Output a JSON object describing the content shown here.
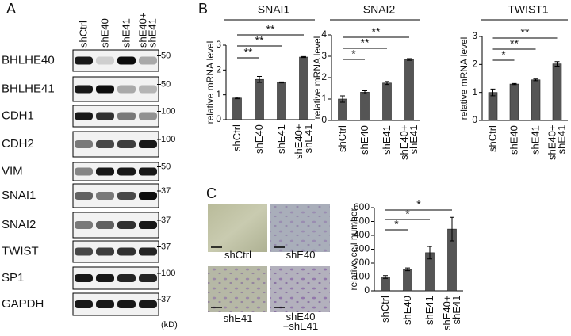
{
  "panel_labels": [
    "A",
    "B",
    "C"
  ],
  "blot": {
    "lanes": [
      "shCtrl",
      "shE40",
      "shE41",
      "shE40+\nshE41"
    ],
    "rows": [
      {
        "label": "BHLHE40",
        "marker": "50"
      },
      {
        "label": "BHLHE41",
        "marker": "50"
      },
      {
        "label": "CDH1",
        "marker": "100"
      },
      {
        "label": "CDH2",
        "marker": "100"
      },
      {
        "label": "VIM",
        "marker": "50"
      },
      {
        "label": "SNAI1",
        "marker": "37"
      },
      {
        "label": "SNAI2",
        "marker": "37"
      },
      {
        "label": "TWIST",
        "marker": "37"
      },
      {
        "label": "SP1",
        "marker": "100"
      },
      {
        "label": "GAPDH",
        "marker": "37"
      }
    ],
    "unit": "(kD)"
  },
  "images": {
    "labels": [
      "shCtrl",
      "shE40",
      "shE41",
      "shE40\n+shE41"
    ]
  },
  "chart_data": [
    {
      "type": "bar",
      "title": "SNAI1",
      "ylabel": "relative mRNA level",
      "categories": [
        "shCtrl",
        "shE40",
        "shE41",
        "shE40+\nshE41"
      ],
      "values": [
        0.87,
        1.62,
        1.5,
        2.52
      ],
      "errors": [
        0.03,
        0.12,
        0.02,
        0.02
      ],
      "significance": [
        null,
        "**",
        "**",
        "**"
      ],
      "ylim": [
        0,
        3
      ],
      "yticks": [
        0,
        1,
        2,
        3
      ],
      "color": "#555555"
    },
    {
      "type": "bar",
      "title": "SNAI2",
      "ylabel": "relative mRNA level",
      "categories": [
        "shCtrl",
        "shE40",
        "shE41",
        "shE40+\nshE41"
      ],
      "values": [
        1.0,
        1.32,
        1.75,
        2.85
      ],
      "errors": [
        0.15,
        0.07,
        0.07,
        0.04
      ],
      "significance": [
        null,
        "*",
        "**",
        "**"
      ],
      "ylim": [
        0,
        4
      ],
      "yticks": [
        0,
        1,
        2,
        3,
        4
      ],
      "color": "#555555"
    },
    {
      "type": "bar",
      "title": "TWIST1",
      "ylabel": "relative mRNA level",
      "categories": [
        "shCtrl",
        "shE40",
        "shE41",
        "shE40+\nshE41"
      ],
      "values": [
        1.0,
        1.3,
        1.45,
        2.02
      ],
      "errors": [
        0.12,
        0.02,
        0.03,
        0.08
      ],
      "significance": [
        null,
        "*",
        "**",
        "**"
      ],
      "ylim": [
        0,
        3
      ],
      "yticks": [
        0,
        1,
        2,
        3
      ],
      "color": "#555555"
    },
    {
      "type": "bar",
      "ylabel": "relative cell number",
      "categories": [
        "shCtrl",
        "shE40",
        "shE41",
        "shE40+\nshE41"
      ],
      "values": [
        100,
        155,
        275,
        445
      ],
      "errors": [
        10,
        10,
        45,
        85
      ],
      "significance": [
        null,
        "*",
        "*",
        "*"
      ],
      "ylim": [
        0,
        600
      ],
      "yticks": [
        0,
        100,
        200,
        300,
        400,
        500,
        600
      ],
      "color": "#555555"
    }
  ]
}
